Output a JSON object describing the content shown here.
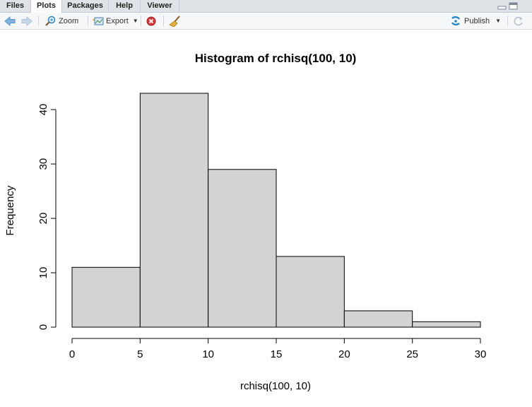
{
  "tabs": [
    {
      "label": "Files",
      "active": false
    },
    {
      "label": "Plots",
      "active": true
    },
    {
      "label": "Packages",
      "active": false
    },
    {
      "label": "Help",
      "active": false
    },
    {
      "label": "Viewer",
      "active": false
    }
  ],
  "toolbar": {
    "zoom_label": "Zoom",
    "export_label": "Export",
    "publish_label": "Publish",
    "icons": [
      "back-arrow-icon",
      "forward-arrow-icon",
      "zoom-icon",
      "export-icon",
      "remove-plot-icon",
      "broom-icon",
      "publish-icon",
      "refresh-icon"
    ]
  },
  "colors": {
    "bar_fill": "#d3d3d3",
    "bar_stroke": "#000000",
    "accent": "#2e86c1"
  },
  "chart_data": {
    "type": "bar",
    "title": "Histogram of rchisq(100, 10)",
    "xlabel": "rchisq(100, 10)",
    "ylabel": "Frequency",
    "bins": [
      [
        0,
        5
      ],
      [
        5,
        10
      ],
      [
        10,
        15
      ],
      [
        15,
        20
      ],
      [
        20,
        25
      ],
      [
        25,
        30
      ]
    ],
    "values": [
      11,
      43,
      29,
      13,
      3,
      1
    ],
    "xticks": [
      0,
      5,
      10,
      15,
      20,
      25,
      30
    ],
    "yticks": [
      0,
      10,
      20,
      30,
      40
    ],
    "xlim": [
      0,
      30
    ],
    "ylim": [
      0,
      43
    ],
    "grid": false,
    "legend": "none"
  }
}
